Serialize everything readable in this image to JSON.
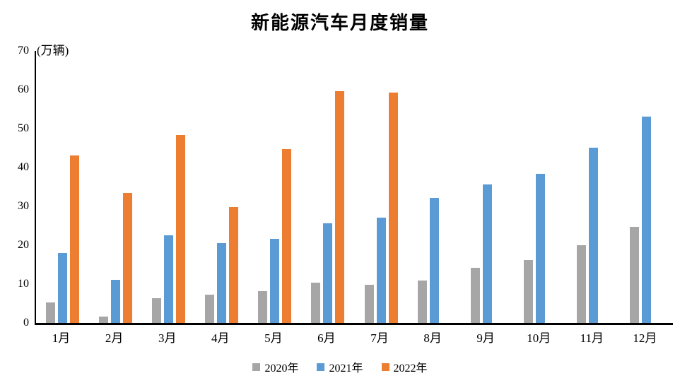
{
  "chart_data": {
    "type": "bar",
    "title": "新能源汽车月度销量",
    "unit_label": "(万辆)",
    "categories": [
      "1月",
      "2月",
      "3月",
      "4月",
      "5月",
      "6月",
      "7月",
      "8月",
      "9月",
      "10月",
      "11月",
      "12月"
    ],
    "series": [
      {
        "name": "2020年",
        "color": "#A6A6A6",
        "values": [
          5.2,
          1.6,
          6.4,
          7.2,
          8.2,
          10.4,
          9.8,
          10.9,
          14.2,
          16.2,
          20.0,
          24.8
        ]
      },
      {
        "name": "2021年",
        "color": "#5B9BD5",
        "values": [
          18.0,
          11.1,
          22.6,
          20.6,
          21.7,
          25.6,
          27.1,
          32.1,
          35.7,
          38.3,
          45.0,
          53.1
        ]
      },
      {
        "name": "2022年",
        "color": "#ED7D31",
        "values": [
          43.1,
          33.4,
          48.4,
          29.9,
          44.7,
          59.6,
          59.3,
          null,
          null,
          null,
          null,
          null
        ]
      }
    ],
    "ylim": [
      0,
      70
    ],
    "yticks": [
      0,
      10,
      20,
      30,
      40,
      50,
      60,
      70
    ],
    "grid": false,
    "legend_position": "bottom",
    "axis_color": "#000000",
    "background_color": "#FFFFFF"
  }
}
